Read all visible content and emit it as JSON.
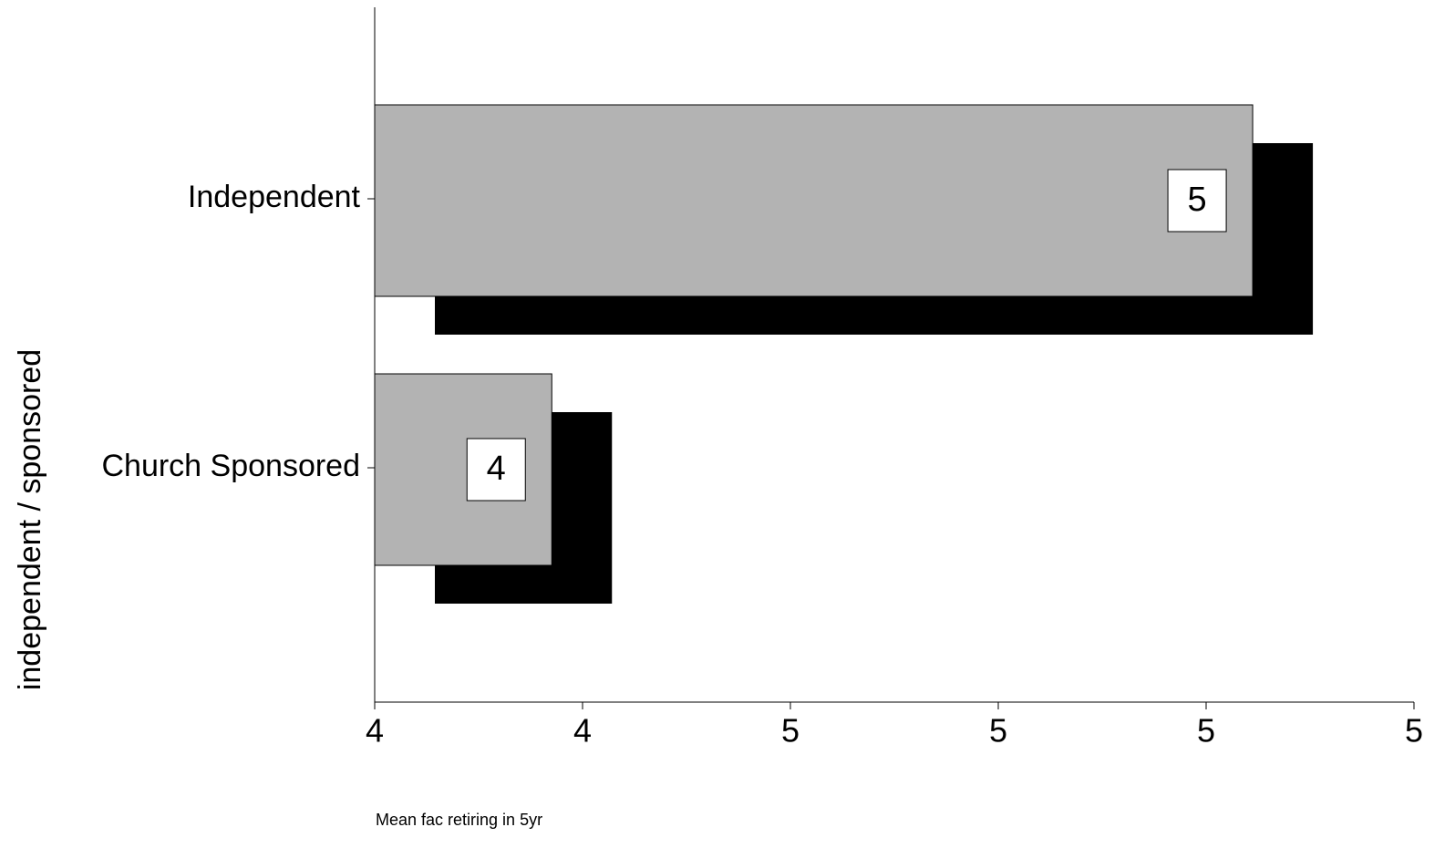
{
  "chart_data": {
    "type": "bar",
    "orientation": "horizontal",
    "x_label": "Mean fac retiring in 5yr",
    "y_label": "independent / sponsored",
    "categories": [
      "Independent",
      "Church Sponsored"
    ],
    "values": [
      5.056,
      4.213
    ],
    "value_labels": [
      "5",
      "4"
    ],
    "color": "#b3b3b3",
    "shadow_color": "#000000",
    "xlim": [
      4,
      5.25
    ],
    "xticks": [
      {
        "value": 4,
        "label": "4"
      },
      {
        "value": 4.25,
        "label": "4"
      },
      {
        "value": 4.5,
        "label": "5"
      },
      {
        "value": 4.75,
        "label": "5"
      },
      {
        "value": 5,
        "label": "5"
      },
      {
        "value": 5.25,
        "label": "5"
      }
    ]
  }
}
